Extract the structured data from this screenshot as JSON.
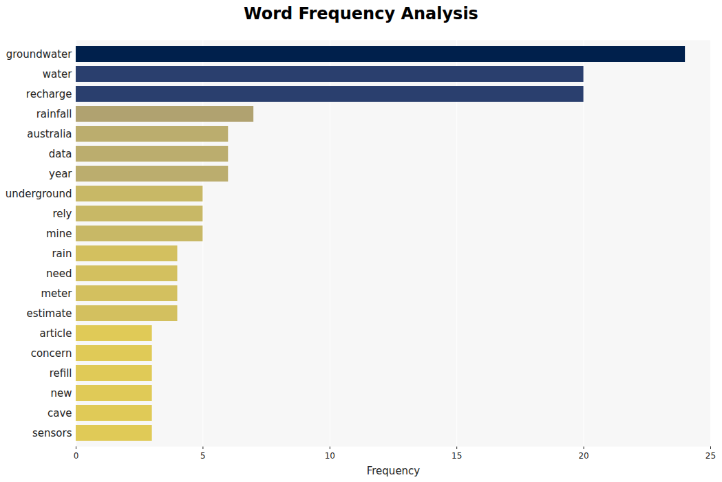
{
  "chart_data": {
    "type": "bar",
    "orientation": "horizontal",
    "title": "Word Frequency Analysis",
    "x_label": "Frequency",
    "categories": [
      "groundwater",
      "water",
      "recharge",
      "rainfall",
      "australia",
      "data",
      "year",
      "underground",
      "rely",
      "mine",
      "rain",
      "need",
      "meter",
      "estimate",
      "article",
      "concern",
      "refill",
      "new",
      "cave",
      "sensors"
    ],
    "values": [
      24,
      20,
      20,
      7,
      6,
      6,
      6,
      5,
      5,
      5,
      4,
      4,
      4,
      4,
      3,
      3,
      3,
      3,
      3,
      3
    ],
    "colors": [
      "#00204c",
      "#2a3f6e",
      "#2a3f6e",
      "#b0a270",
      "#bbad6e",
      "#bbad6e",
      "#bbad6e",
      "#c8b866",
      "#c8b866",
      "#c8b866",
      "#d3c05f",
      "#d3c05f",
      "#d3c05f",
      "#d3c05f",
      "#e0ca57",
      "#e0ca57",
      "#e0ca57",
      "#e0ca57",
      "#e0ca57",
      "#e0ca57"
    ],
    "xlim": [
      0,
      25
    ],
    "xticks": [
      0,
      5,
      10,
      15,
      20,
      25
    ],
    "grid": true
  }
}
